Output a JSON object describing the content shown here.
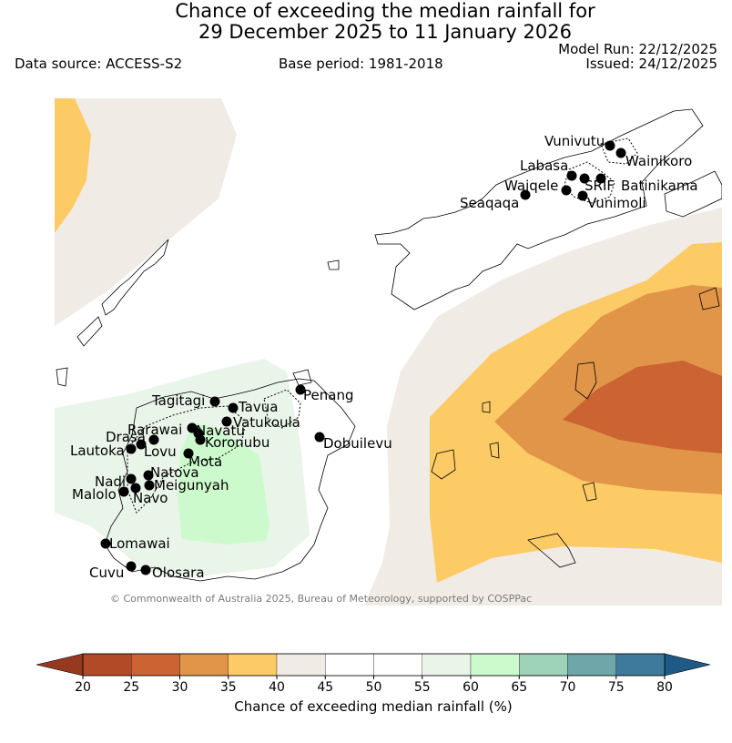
{
  "title": {
    "line1": "Chance of exceeding the median rainfall for",
    "line2": "29 December 2025 to 11 January 2026"
  },
  "header": {
    "data_source": "Data source: ACCESS-S2",
    "base_period": "Base period: 1981-2018",
    "model_run": "Model Run: 22/12/2025",
    "issued": "Issued: 24/12/2025"
  },
  "map": {
    "region": "Fiji",
    "copyright": "© Commonwealth of Australia 2025, Bureau of Meteorology, supported by COSPPac",
    "colors": {
      "20-25": "#b34a27",
      "25-30": "#cc6332",
      "30-35": "#e09548",
      "35-40": "#fdcb66",
      "40-45": "#f0ebe5",
      "45-55": "#ffffff",
      "55-60": "#eaf5ea",
      "60-65": "#ccfacc",
      "65-70": "#9ed2b9",
      "70-75": "#6fa6aa",
      "75-80": "#3e7a9b"
    },
    "stations": [
      {
        "name": "Vunivutu"
      },
      {
        "name": "Wainikoro"
      },
      {
        "name": "Labasa"
      },
      {
        "name": "Waiqele"
      },
      {
        "name": "SRIF"
      },
      {
        "name": "Batinikama"
      },
      {
        "name": "Seaqaqa"
      },
      {
        "name": "Vunimoli"
      },
      {
        "name": "Penang"
      },
      {
        "name": "Tagitagi"
      },
      {
        "name": "Tavua"
      },
      {
        "name": "Vatukoula"
      },
      {
        "name": "Rarawai"
      },
      {
        "name": "Navatu"
      },
      {
        "name": "Drasa"
      },
      {
        "name": "Koronubu"
      },
      {
        "name": "Lautoka"
      },
      {
        "name": "Lovu"
      },
      {
        "name": "Dobuilevu"
      },
      {
        "name": "Mota"
      },
      {
        "name": "Natova"
      },
      {
        "name": "Nadi"
      },
      {
        "name": "Meigunyah"
      },
      {
        "name": "Malolo"
      },
      {
        "name": "Navo"
      },
      {
        "name": "Lomawai"
      },
      {
        "name": "Cuvu"
      },
      {
        "name": "Olosara"
      }
    ]
  },
  "colorbar": {
    "label": "Chance of exceeding median rainfall (%)",
    "ticks": [
      "20",
      "25",
      "30",
      "35",
      "40",
      "45",
      "50",
      "55",
      "60",
      "65",
      "70",
      "75",
      "80"
    ],
    "colors": [
      "#b34a27",
      "#cc6332",
      "#e09548",
      "#fdcb66",
      "#f0ebe5",
      "#ffffff",
      "#ffffff",
      "#eaf5ea",
      "#ccfacc",
      "#9ed2b9",
      "#6fa6aa",
      "#3e7a9b"
    ],
    "extend_low_color": "#953a20",
    "extend_high_color": "#1f5a86"
  }
}
